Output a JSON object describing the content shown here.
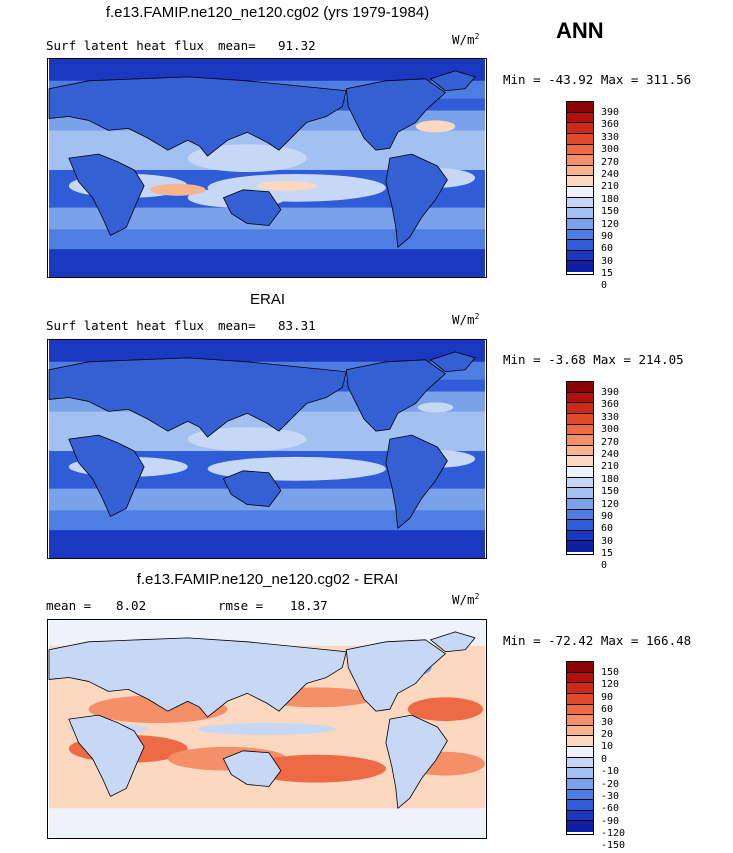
{
  "season": "ANN",
  "panels": [
    {
      "title": "f.e13.FAMIP.ne120_ne120.cg02 (yrs 1979-1984)",
      "left_label": "Surf latent heat flux",
      "stat1_label": "mean=",
      "stat1_value": "91.32",
      "units_base": "W/m",
      "units_exp": "2",
      "range_text": "Min = -43.92 Max = 311.56",
      "colorbar_labels": [
        "390",
        "360",
        "330",
        "300",
        "270",
        "240",
        "210",
        "180",
        "150",
        "120",
        "90",
        "60",
        "30",
        "15",
        "0"
      ],
      "colorbar_colors": [
        "#8b0000",
        "#b01010",
        "#cc2a1a",
        "#e04a2a",
        "#ee6a45",
        "#f48f68",
        "#f8b48f",
        "#fbd8bf",
        "#eef2fb",
        "#c6d8f5",
        "#a2c0f0",
        "#7aa2ea",
        "#4f7ee2",
        "#2f5cd7",
        "#1a38c0",
        "#0d1fa0"
      ],
      "field_type": "abs"
    },
    {
      "title": "ERAI",
      "left_label": "Surf latent heat flux",
      "stat1_label": "mean=",
      "stat1_value": "83.31",
      "units_base": "W/m",
      "units_exp": "2",
      "range_text": "Min =  -3.68 Max = 214.05",
      "colorbar_labels": [
        "390",
        "360",
        "330",
        "300",
        "270",
        "240",
        "210",
        "180",
        "150",
        "120",
        "90",
        "60",
        "30",
        "15",
        "0"
      ],
      "colorbar_colors": [
        "#8b0000",
        "#b01010",
        "#cc2a1a",
        "#e04a2a",
        "#ee6a45",
        "#f48f68",
        "#f8b48f",
        "#fbd8bf",
        "#eef2fb",
        "#c6d8f5",
        "#a2c0f0",
        "#7aa2ea",
        "#4f7ee2",
        "#2f5cd7",
        "#1a38c0",
        "#0d1fa0"
      ],
      "field_type": "abs"
    },
    {
      "title": "f.e13.FAMIP.ne120_ne120.cg02 - ERAI",
      "left_label": "mean =",
      "stat1_label": "",
      "stat1_value": "8.02",
      "stat2_label": "rmse =",
      "stat2_value": "18.37",
      "units_base": "W/m",
      "units_exp": "2",
      "range_text": "Min = -72.42 Max = 166.48",
      "colorbar_labels": [
        "150",
        "120",
        "90",
        "60",
        "30",
        "20",
        "10",
        "0",
        "-10",
        "-20",
        "-30",
        "-60",
        "-90",
        "-120",
        "-150"
      ],
      "colorbar_colors": [
        "#8b0000",
        "#b01010",
        "#cc2a1a",
        "#e04a2a",
        "#ee6a45",
        "#f48f68",
        "#f8b48f",
        "#fbd8bf",
        "#eef2fb",
        "#c6d8f5",
        "#a2c0f0",
        "#7aa2ea",
        "#4f7ee2",
        "#2f5cd7",
        "#1a38c0",
        "#0d1fa0"
      ],
      "field_type": "diff"
    }
  ]
}
